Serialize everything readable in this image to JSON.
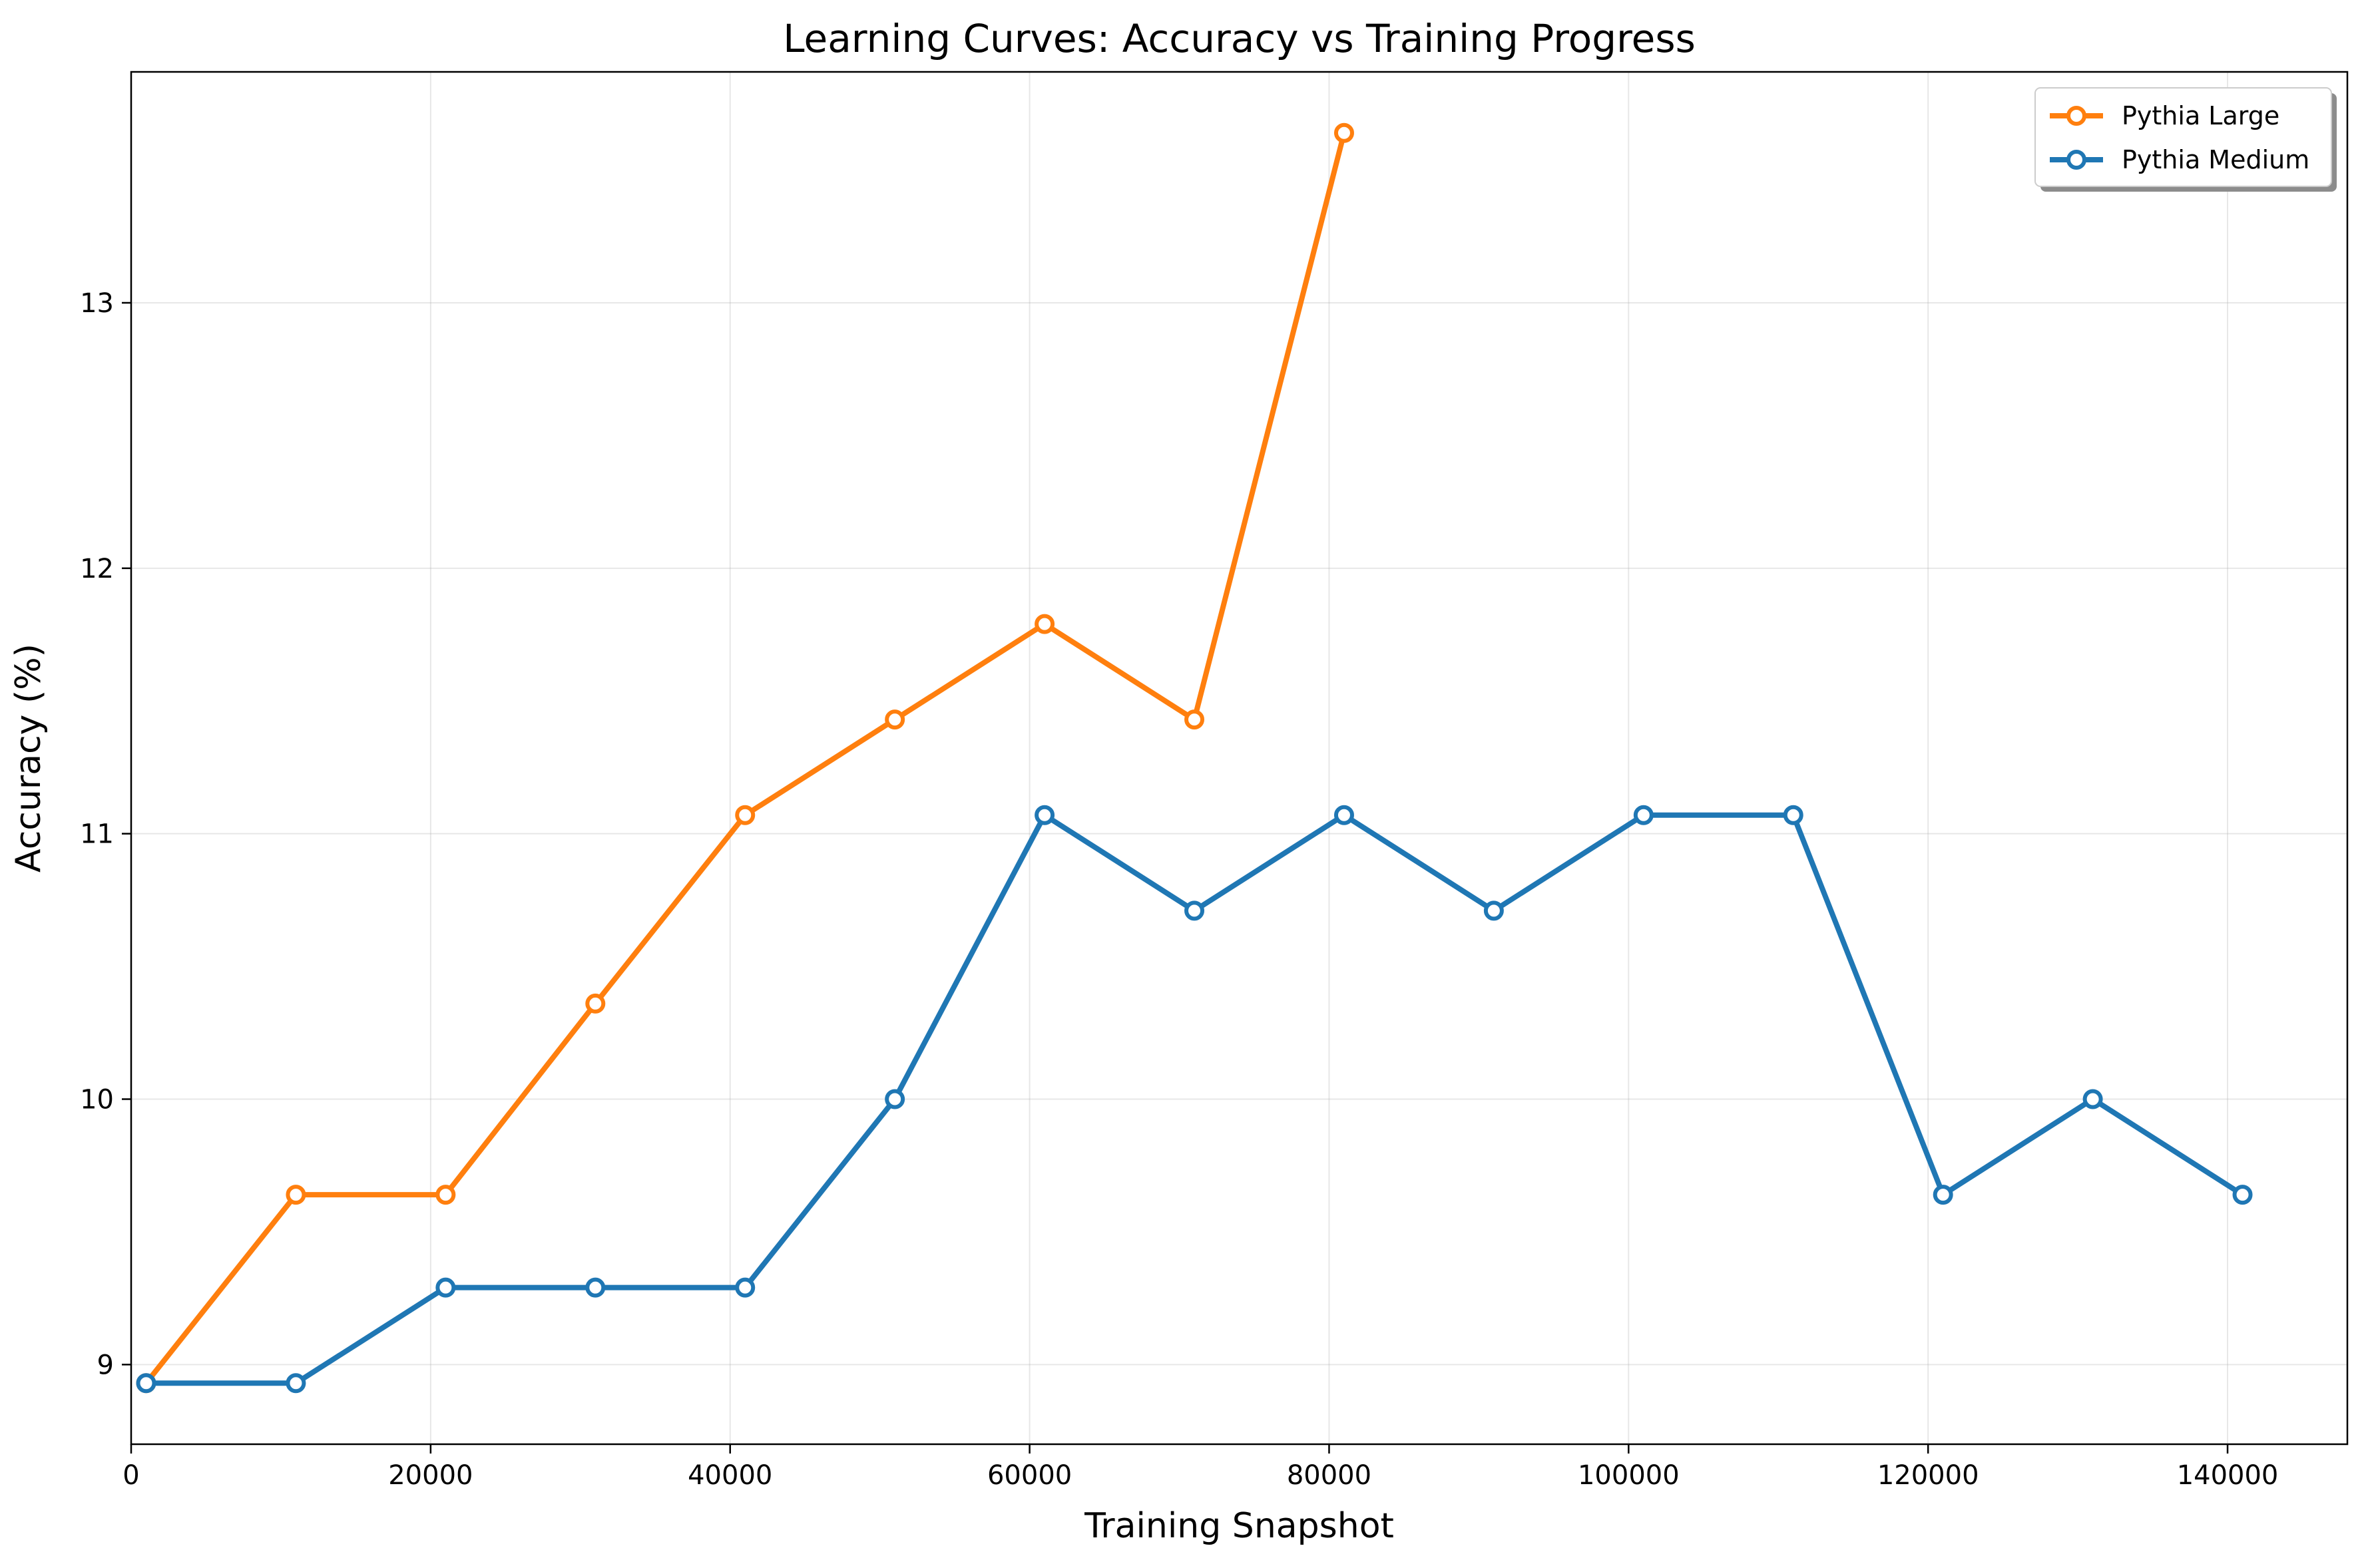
{
  "chart_data": {
    "type": "line",
    "title": "Learning Curves: Accuracy vs Training Progress",
    "xlabel": "Training Snapshot",
    "ylabel": "Accuracy (%)",
    "xlim": [
      0,
      148000
    ],
    "ylim": [
      8.7,
      13.87
    ],
    "x_ticks": [
      0,
      20000,
      40000,
      60000,
      80000,
      100000,
      120000,
      140000
    ],
    "x_tick_labels": [
      "0",
      "20000",
      "40000",
      "60000",
      "80000",
      "100000",
      "120000",
      "140000"
    ],
    "y_ticks": [
      9,
      10,
      11,
      12,
      13
    ],
    "y_tick_labels": [
      "9",
      "10",
      "11",
      "12",
      "13"
    ],
    "grid": true,
    "legend_position": "top-right",
    "series": [
      {
        "name": "Pythia Large",
        "color": "#ff7f0e",
        "x": [
          1000,
          11000,
          21000,
          31000,
          41000,
          51000,
          61000,
          71000,
          81000
        ],
        "y": [
          8.93,
          9.64,
          9.64,
          10.36,
          11.07,
          11.43,
          11.79,
          11.43,
          13.64
        ]
      },
      {
        "name": "Pythia Medium",
        "color": "#1f77b4",
        "x": [
          1000,
          11000,
          21000,
          31000,
          41000,
          51000,
          61000,
          71000,
          81000,
          91000,
          101000,
          111000,
          121000,
          131000,
          141000
        ],
        "y": [
          8.93,
          8.93,
          9.29,
          9.29,
          9.29,
          10.0,
          11.07,
          10.71,
          11.07,
          10.71,
          11.07,
          11.07,
          9.64,
          10.0,
          9.64
        ]
      }
    ]
  }
}
